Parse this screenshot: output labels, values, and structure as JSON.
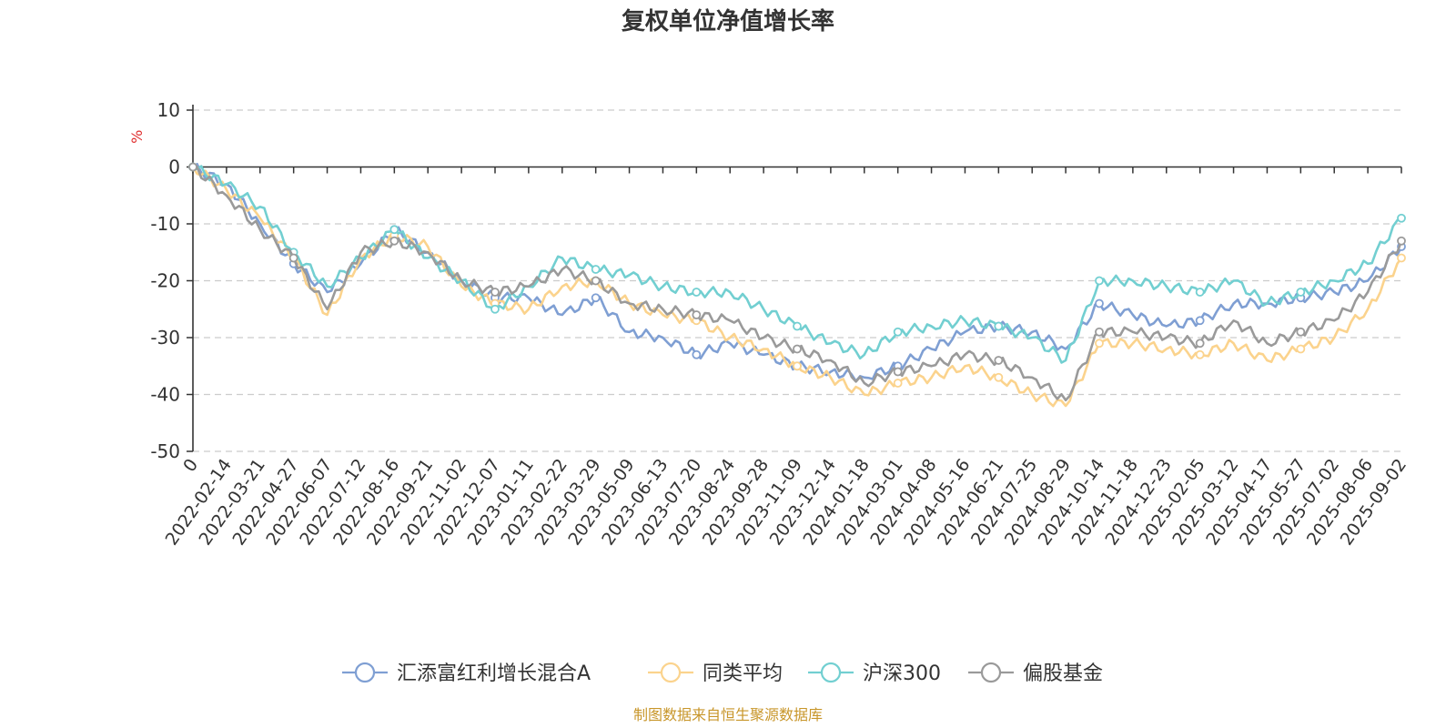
{
  "chart_data": {
    "type": "line",
    "title": "复权单位净值增长率",
    "ylabel": "%",
    "ylim": [
      -50,
      10
    ],
    "yticks": [
      10,
      0,
      -10,
      -20,
      -30,
      -40,
      -50
    ],
    "grid": true,
    "legend_position": "bottom",
    "x_tick_labels": [
      "0",
      "2022-02-14",
      "2022-03-21",
      "2022-04-27",
      "2022-06-07",
      "2022-07-12",
      "2022-08-16",
      "2022-09-21",
      "2022-11-02",
      "2022-12-07",
      "2023-01-11",
      "2023-02-22",
      "2023-03-29",
      "2023-05-09",
      "2023-06-13",
      "2023-07-20",
      "2023-08-24",
      "2023-09-28",
      "2023-11-09",
      "2023-12-14",
      "2024-01-18",
      "2024-03-01",
      "2024-04-08",
      "2024-05-16",
      "2024-06-21",
      "2024-07-25",
      "2024-08-29",
      "2024-10-14",
      "2024-11-18",
      "2024-12-23",
      "2025-02-05",
      "2025-03-12",
      "2025-04-17",
      "2025-05-27",
      "2025-07-02",
      "2025-08-06",
      "2025-09-02"
    ],
    "series": [
      {
        "name": "汇添富红利增长混合A",
        "color": "#7f9fd3",
        "values": [
          0,
          -3,
          -10,
          -17,
          -22,
          -17,
          -11,
          -15,
          -20,
          -23,
          -23,
          -26,
          -23,
          -29,
          -30,
          -33,
          -31,
          -33,
          -35,
          -36,
          -37,
          -35,
          -32,
          -29,
          -28,
          -29,
          -32,
          -24,
          -26,
          -28,
          -27,
          -24,
          -24,
          -23,
          -22,
          -20,
          -14
        ]
      },
      {
        "name": "同类平均",
        "color": "#fbd38d",
        "values": [
          0,
          -4,
          -9,
          -16,
          -26,
          -16,
          -12,
          -14,
          -21,
          -24,
          -25,
          -21,
          -20,
          -24,
          -26,
          -27,
          -30,
          -32,
          -35,
          -37,
          -40,
          -38,
          -37,
          -35,
          -37,
          -40,
          -42,
          -31,
          -31,
          -32,
          -33,
          -31,
          -34,
          -32,
          -30,
          -25,
          -16
        ]
      },
      {
        "name": "沪深300",
        "color": "#72cfd1",
        "values": [
          0,
          -3,
          -7,
          -15,
          -21,
          -16,
          -11,
          -16,
          -20,
          -25,
          -21,
          -16,
          -18,
          -19,
          -21,
          -22,
          -22,
          -25,
          -28,
          -31,
          -33,
          -29,
          -28,
          -27,
          -28,
          -30,
          -34,
          -20,
          -20,
          -21,
          -22,
          -20,
          -24,
          -22,
          -20,
          -17,
          -9
        ]
      },
      {
        "name": "偏股基金",
        "color": "#9a9a9a",
        "values": [
          0,
          -5,
          -11,
          -16,
          -25,
          -15,
          -13,
          -15,
          -20,
          -22,
          -21,
          -18,
          -20,
          -24,
          -25,
          -26,
          -27,
          -30,
          -32,
          -34,
          -38,
          -36,
          -35,
          -33,
          -34,
          -37,
          -41,
          -29,
          -29,
          -30,
          -31,
          -27,
          -31,
          -29,
          -27,
          -22,
          -13
        ]
      }
    ]
  },
  "source_note": "制图数据来自恒生聚源数据库",
  "colors": {
    "source_note": "#c8962a",
    "unit_label": "#e03030",
    "axis": "#333333",
    "grid": "#cccccc"
  }
}
